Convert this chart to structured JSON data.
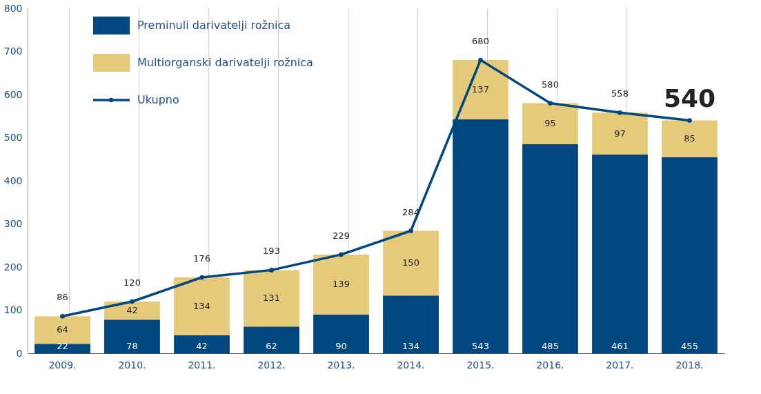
{
  "chart_data": {
    "type": "bar",
    "stacked": true,
    "categories": [
      "2009.",
      "2010.",
      "2011.",
      "2012.",
      "2013.",
      "2014.",
      "2015.",
      "2016.",
      "2017.",
      "2018."
    ],
    "series": [
      {
        "name": "Preminuli darivatelji rožnica",
        "color": "#00467f",
        "values": [
          22,
          78,
          42,
          62,
          90,
          134,
          543,
          485,
          461,
          455
        ]
      },
      {
        "name": "Multiorganski darivatelji rožnica",
        "color": "#e6ca7b",
        "values": [
          64,
          42,
          134,
          131,
          139,
          150,
          137,
          95,
          97,
          85
        ]
      },
      {
        "name": "Ukupno",
        "type": "line",
        "color": "#00467f",
        "values": [
          86,
          120,
          176,
          193,
          229,
          284,
          680,
          580,
          558,
          540
        ]
      }
    ],
    "ylim": [
      0,
      800
    ],
    "yticks": [
      0,
      100,
      200,
      300,
      400,
      500,
      600,
      700,
      800
    ],
    "grid": "x",
    "legend": "top left",
    "marker": "circle",
    "line_style": "solid",
    "data_labels": true
  }
}
